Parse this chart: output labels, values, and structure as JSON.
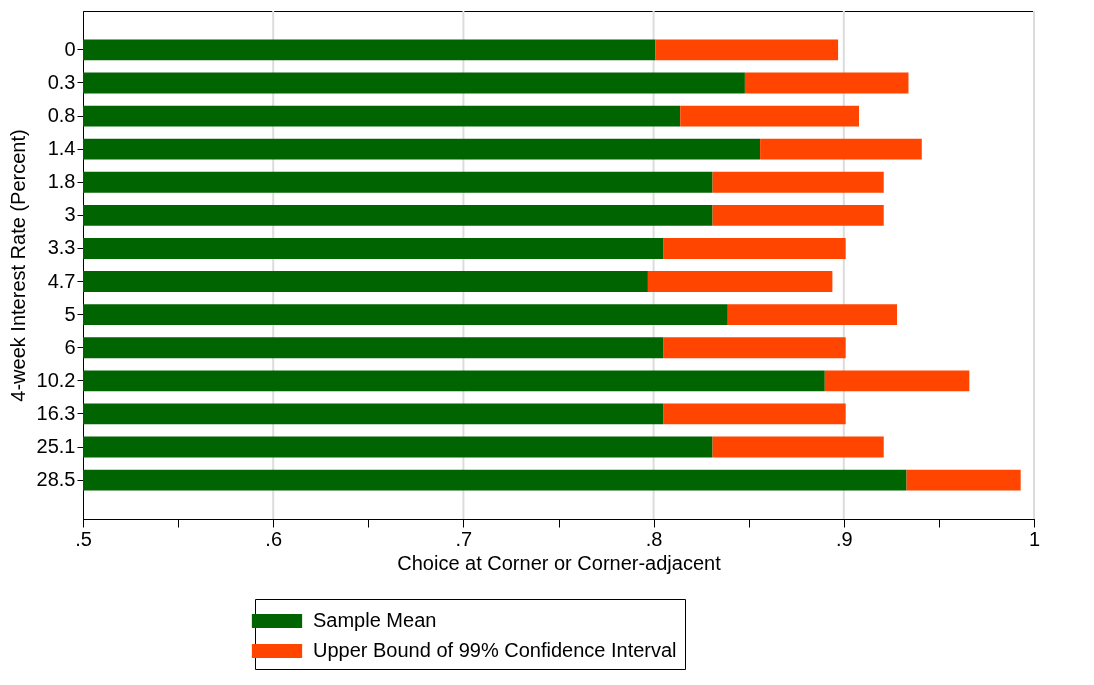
{
  "chart_data": {
    "type": "bar",
    "orientation": "horizontal",
    "stacked": true,
    "xlabel": "Choice at Corner or Corner-adjacent",
    "ylabel": "4-week Interest Rate (Percent)",
    "categories": [
      "0",
      "0.3",
      "0.8",
      "1.4",
      "1.8",
      "3",
      "3.3",
      "4.7",
      "5",
      "6",
      "10.2",
      "16.3",
      "25.1",
      "28.5"
    ],
    "series": [
      {
        "name": "Sample Mean",
        "color": "#006400",
        "values": [
          0.801,
          0.848,
          0.814,
          0.856,
          0.831,
          0.831,
          0.805,
          0.797,
          0.839,
          0.805,
          0.89,
          0.805,
          0.831,
          0.933
        ]
      },
      {
        "name": "Upper Bound of 99% Confidence Interval",
        "color": "#ff4500",
        "base": [
          0.801,
          0.848,
          0.814,
          0.856,
          0.831,
          0.831,
          0.805,
          0.797,
          0.839,
          0.805,
          0.89,
          0.805,
          0.831,
          0.933
        ],
        "values": [
          0.096,
          0.086,
          0.094,
          0.085,
          0.09,
          0.09,
          0.096,
          0.097,
          0.089,
          0.096,
          0.076,
          0.096,
          0.09,
          0.06
        ]
      }
    ],
    "xlim": [
      0.5,
      1
    ],
    "xticks": [
      {
        "value": 0.5,
        "label": ".5"
      },
      {
        "value": 0.55,
        "label": null
      },
      {
        "value": 0.6,
        "label": ".6"
      },
      {
        "value": 0.65,
        "label": null
      },
      {
        "value": 0.7,
        "label": ".7"
      },
      {
        "value": 0.75,
        "label": null
      },
      {
        "value": 0.8,
        "label": ".8"
      },
      {
        "value": 0.85,
        "label": null
      },
      {
        "value": 0.9,
        "label": ".9"
      },
      {
        "value": 0.95,
        "label": null
      },
      {
        "value": 1,
        "label": "1"
      }
    ],
    "grid": "x",
    "legend": "bottom"
  }
}
